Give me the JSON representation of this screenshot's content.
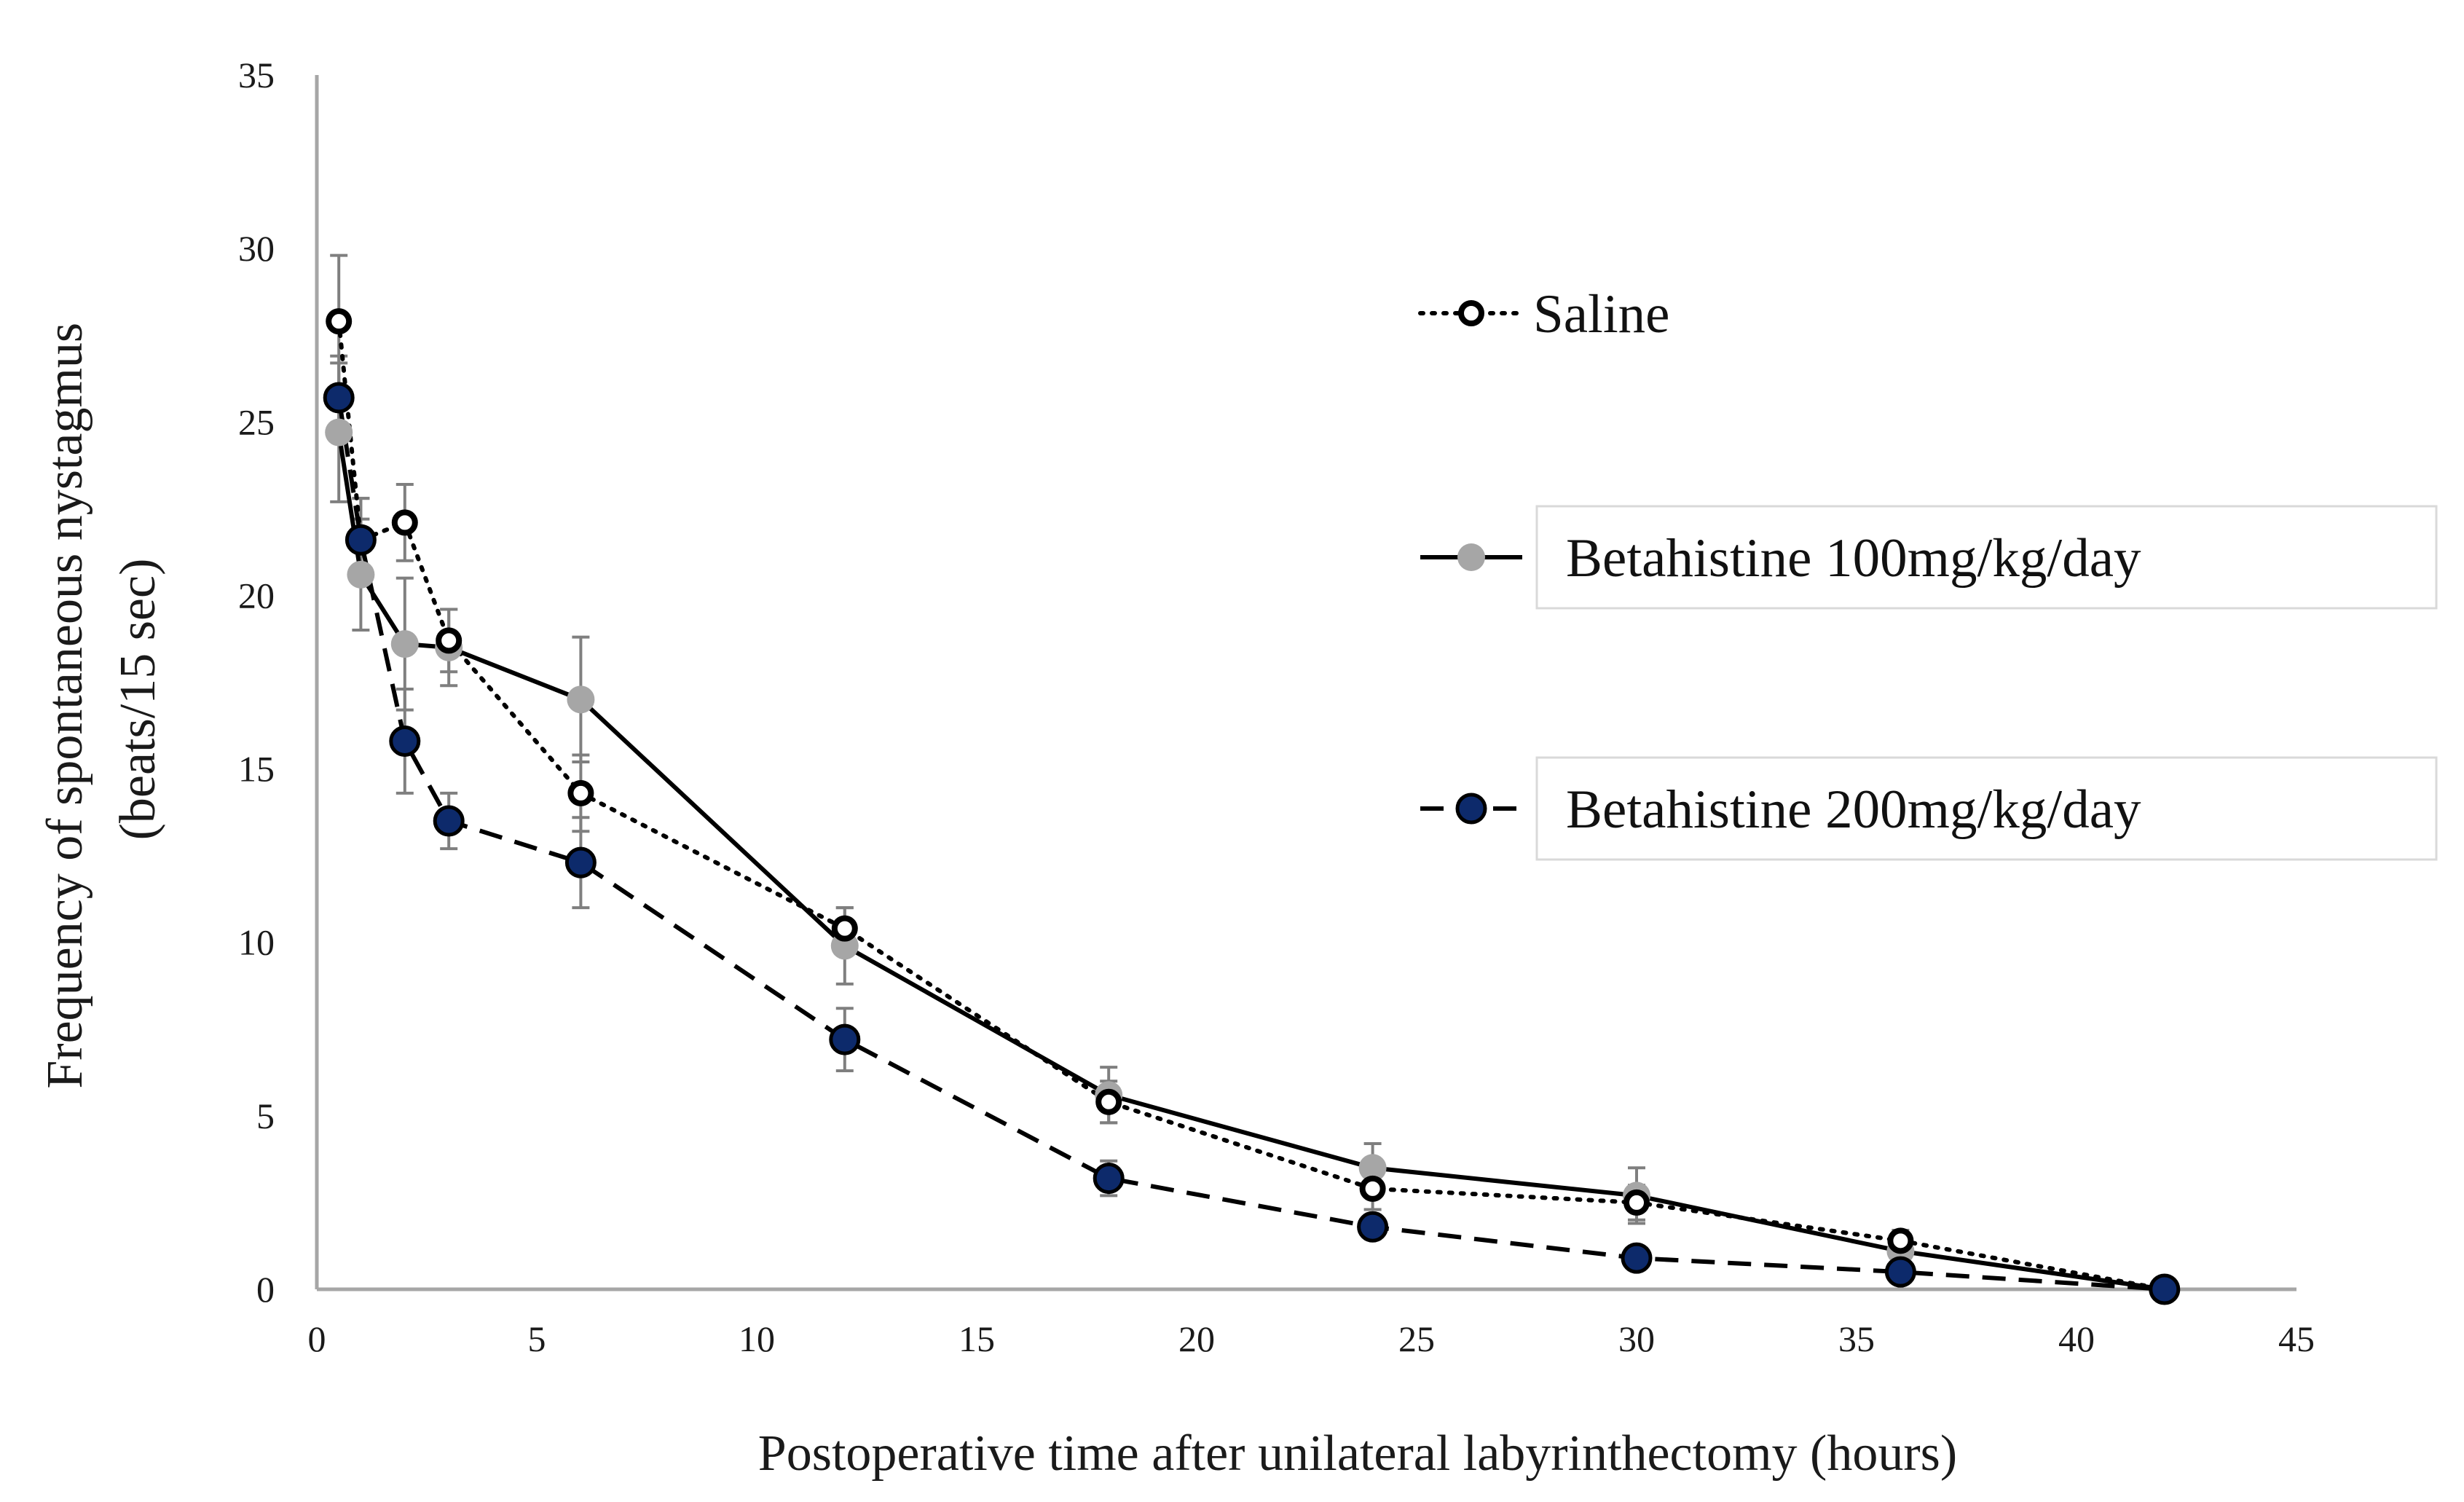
{
  "chart_data": {
    "type": "line",
    "title": "",
    "xlabel": "Postoperative time after unilateral labyrinthectomy (hours)",
    "ylabel_line1": "Frequency of spontaneous nystagmus",
    "ylabel_line2": "(beats/15 sec)",
    "xlim": [
      0,
      45
    ],
    "ylim": [
      0,
      35
    ],
    "xticks": [
      0,
      5,
      10,
      15,
      20,
      25,
      30,
      35,
      40,
      45
    ],
    "yticks": [
      0,
      5,
      10,
      15,
      20,
      25,
      30,
      35
    ],
    "grid": false,
    "legend_position": "right",
    "series": [
      {
        "name": "Saline",
        "line_style": "dotted",
        "marker": "open-circle",
        "marker_fill": "#ffffff",
        "marker_stroke": "#000000",
        "line_color": "#000000",
        "x": [
          0.5,
          1,
          2,
          3,
          6,
          12,
          18,
          24,
          30,
          36,
          42
        ],
        "y": [
          27.9,
          21.6,
          22.1,
          18.7,
          14.3,
          10.4,
          5.4,
          2.9,
          2.5,
          1.4,
          0
        ],
        "error": [
          1.9,
          1.2,
          1.1,
          0.9,
          1.1,
          0.6,
          0.6,
          0.6,
          0.5,
          0.3,
          0
        ]
      },
      {
        "name": "Betahistine 100mg/kg/day",
        "line_style": "solid",
        "marker": "filled-circle",
        "marker_fill": "#a6a6a6",
        "marker_stroke": "#a6a6a6",
        "line_color": "#000000",
        "x": [
          0.5,
          1,
          2,
          3,
          6,
          12,
          18,
          24,
          30,
          36,
          42
        ],
        "y": [
          24.7,
          20.6,
          18.6,
          18.5,
          17.0,
          9.9,
          5.6,
          3.5,
          2.7,
          1.1,
          0
        ],
        "error": [
          2.0,
          1.6,
          1.9,
          1.1,
          1.8,
          1.1,
          0.8,
          0.7,
          0.8,
          0.3,
          0
        ]
      },
      {
        "name": "Betahistine 200mg/kg/day",
        "line_style": "dashed",
        "marker": "filled-circle",
        "marker_fill": "#0d2a6b",
        "marker_stroke": "#000000",
        "line_color": "#000000",
        "x": [
          0.5,
          1,
          2,
          3,
          6,
          12,
          18,
          24,
          30,
          36,
          42
        ],
        "y": [
          25.7,
          21.6,
          15.8,
          13.5,
          12.3,
          7.2,
          3.2,
          1.8,
          0.9,
          0.5,
          0
        ],
        "error": [
          1.2,
          1.2,
          1.5,
          0.8,
          1.3,
          0.9,
          0.5,
          0.3,
          0.2,
          0.2,
          0
        ]
      }
    ]
  },
  "colors": {
    "axis": "#a6a6a6",
    "error_bar": "#7f7f7f",
    "legend_box_border": "#d9d9d9"
  }
}
